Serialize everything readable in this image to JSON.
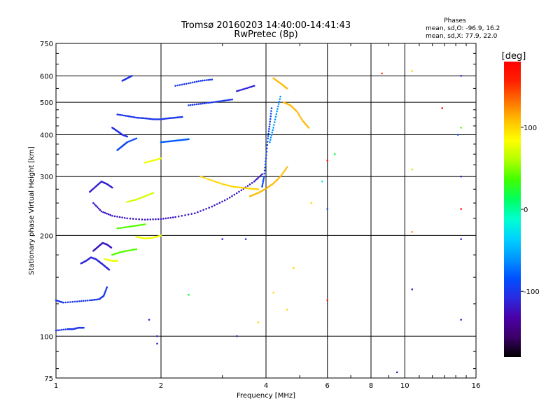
{
  "header": {
    "title_line1": "Tromsø 20160203 14:40:00-14:41:43",
    "title_line2": "RwPretec (8p)",
    "stats_title": "Phases",
    "stats_line_O": "mean, sd,O: -96.9, 16.2",
    "stats_line_X": "mean, sd,X:  77.9, 22.0"
  },
  "colorbar": {
    "unit_label": "[deg]",
    "ticks": [
      {
        "value": 100,
        "label": "100"
      },
      {
        "value": 0,
        "label": "0"
      },
      {
        "value": -100,
        "label": "-100"
      }
    ],
    "range": [
      -180,
      180
    ],
    "palette": [
      "#000000",
      "#3b0066",
      "#4a00a8",
      "#2a2ae0",
      "#0050ff",
      "#0096ff",
      "#00d2ff",
      "#00ffd0",
      "#00ff60",
      "#40ff00",
      "#b0ff00",
      "#ffff00",
      "#ffc000",
      "#ff7000",
      "#ff2000",
      "#ff0000"
    ]
  },
  "chart_data": {
    "type": "scatter",
    "title": "Tromsø 20160203 14:40:00-14:41:43",
    "subtitle": "RwPretec (8p)",
    "xlabel": "Frequency [MHz]",
    "ylabel": "Stationary phase Virtual Height [km]",
    "xscale": "log",
    "yscale": "log",
    "xlim": [
      1,
      16
    ],
    "ylim": [
      75,
      750
    ],
    "xticks": [
      1,
      2,
      4,
      6,
      8,
      10,
      16
    ],
    "xtick_labels": [
      "1",
      "2",
      "4",
      "6",
      "8",
      "10",
      "16"
    ],
    "yticks": [
      75,
      100,
      200,
      300,
      400,
      500,
      600,
      750
    ],
    "ytick_labels": [
      "75",
      "100",
      "200",
      "300",
      "400",
      "500",
      "600",
      "750"
    ],
    "grid": true,
    "color_encoding": "phase [deg]",
    "traces": [
      {
        "freq": [
          1.0,
          1.08,
          1.12,
          1.16,
          1.2
        ],
        "height": [
          104,
          105,
          105,
          106,
          106
        ],
        "phase": -100
      },
      {
        "freq": [
          1.0,
          1.05,
          1.15,
          1.25,
          1.33,
          1.37,
          1.4
        ],
        "height": [
          128,
          126,
          127,
          128,
          129,
          132,
          140
        ],
        "phase": -100
      },
      {
        "freq": [
          1.18,
          1.22,
          1.26,
          1.3,
          1.34,
          1.38,
          1.42
        ],
        "height": [
          165,
          168,
          172,
          170,
          166,
          162,
          158
        ],
        "phase": -110
      },
      {
        "freq": [
          1.28,
          1.32,
          1.36,
          1.4,
          1.44
        ],
        "height": [
          180,
          185,
          190,
          188,
          184
        ],
        "phase": -120
      },
      {
        "freq": [
          1.45,
          1.52,
          1.6,
          1.7
        ],
        "height": [
          175,
          178,
          180,
          182
        ],
        "phase": 40
      },
      {
        "freq": [
          1.38,
          1.45,
          1.5
        ],
        "height": [
          170,
          168,
          168
        ],
        "phase": 80
      },
      {
        "freq": [
          1.28,
          1.35,
          1.45,
          1.6,
          1.8,
          2.0,
          2.2,
          2.5,
          2.8,
          3.1,
          3.4,
          3.7,
          3.9
        ],
        "height": [
          250,
          236,
          229,
          225,
          223,
          224,
          227,
          233,
          244,
          257,
          273,
          290,
          305
        ],
        "phase": -120
      },
      {
        "freq": [
          1.25,
          1.3,
          1.35,
          1.4,
          1.45
        ],
        "height": [
          270,
          280,
          290,
          285,
          278
        ],
        "phase": -115
      },
      {
        "freq": [
          1.5,
          1.6,
          1.7,
          1.8
        ],
        "height": [
          210,
          212,
          214,
          216
        ],
        "phase": 40
      },
      {
        "freq": [
          1.7,
          1.8,
          1.9,
          2.0
        ],
        "height": [
          198,
          196,
          197,
          200
        ],
        "phase": 80
      },
      {
        "freq": [
          1.6,
          1.7,
          1.8,
          1.9
        ],
        "height": [
          252,
          256,
          262,
          268
        ],
        "phase": 70
      },
      {
        "freq": [
          2.6,
          2.8,
          3.0,
          3.2,
          3.4,
          3.6,
          3.8
        ],
        "height": [
          300,
          292,
          285,
          280,
          278,
          276,
          275
        ],
        "phase": 100
      },
      {
        "freq": [
          3.6,
          3.8,
          4.0,
          4.2,
          4.4,
          4.6
        ],
        "height": [
          262,
          268,
          276,
          286,
          300,
          320
        ],
        "phase": 110
      },
      {
        "freq": [
          3.9,
          3.95,
          4.0,
          4.05,
          4.1,
          4.15
        ],
        "height": [
          280,
          300,
          340,
          390,
          430,
          480
        ],
        "phase": -90
      },
      {
        "freq": [
          4.1,
          4.2,
          4.3,
          4.4
        ],
        "height": [
          380,
          420,
          470,
          520
        ],
        "phase": -60
      },
      {
        "freq": [
          4.5,
          4.7,
          4.9,
          5.1,
          5.3
        ],
        "height": [
          500,
          490,
          470,
          440,
          420
        ],
        "phase": 110
      },
      {
        "freq": [
          4.2,
          4.4,
          4.6
        ],
        "height": [
          590,
          570,
          550
        ],
        "phase": 110
      },
      {
        "freq": [
          1.5,
          1.6,
          1.7,
          1.8,
          1.9,
          2.0,
          2.1,
          2.2,
          2.3
        ],
        "height": [
          460,
          455,
          450,
          448,
          445,
          445,
          448,
          450,
          452
        ],
        "phase": -100
      },
      {
        "freq": [
          2.4,
          2.6,
          2.8,
          3.0,
          3.2
        ],
        "height": [
          490,
          495,
          500,
          505,
          510
        ],
        "phase": -100
      },
      {
        "freq": [
          3.3,
          3.5,
          3.7
        ],
        "height": [
          540,
          550,
          560
        ],
        "phase": -110
      },
      {
        "freq": [
          2.2,
          2.4,
          2.6,
          2.8
        ],
        "height": [
          560,
          570,
          580,
          585
        ],
        "phase": -100
      },
      {
        "freq": [
          1.5,
          1.55,
          1.6,
          1.7
        ],
        "height": [
          360,
          370,
          380,
          390
        ],
        "phase": -90
      },
      {
        "freq": [
          2.0,
          2.1,
          2.2,
          2.3,
          2.4
        ],
        "height": [
          380,
          382,
          384,
          386,
          388
        ],
        "phase": -80
      },
      {
        "freq": [
          1.55,
          1.6,
          1.65
        ],
        "height": [
          580,
          590,
          600
        ],
        "phase": -100
      },
      {
        "freq": [
          1.45,
          1.5,
          1.55,
          1.6
        ],
        "height": [
          420,
          410,
          400,
          395
        ],
        "phase": -105
      },
      {
        "freq": [
          1.8,
          1.9,
          2.0
        ],
        "height": [
          330,
          335,
          340
        ],
        "phase": 80
      }
    ],
    "points": [
      {
        "freq": 8.6,
        "height": 610,
        "phase": 150
      },
      {
        "freq": 10.5,
        "height": 620,
        "phase": 100
      },
      {
        "freq": 12.8,
        "height": 480,
        "phase": 170
      },
      {
        "freq": 14.5,
        "height": 420,
        "phase": 40
      },
      {
        "freq": 14.5,
        "height": 600,
        "phase": -120
      },
      {
        "freq": 14.2,
        "height": 400,
        "phase": -90
      },
      {
        "freq": 6.3,
        "height": 350,
        "phase": 20
      },
      {
        "freq": 6.0,
        "height": 335,
        "phase": 170
      },
      {
        "freq": 5.8,
        "height": 290,
        "phase": -20
      },
      {
        "freq": 10.5,
        "height": 315,
        "phase": 60
      },
      {
        "freq": 14.5,
        "height": 300,
        "phase": -110
      },
      {
        "freq": 14.5,
        "height": 240,
        "phase": 170
      },
      {
        "freq": 10.5,
        "height": 205,
        "phase": 120
      },
      {
        "freq": 14.5,
        "height": 195,
        "phase": -110
      },
      {
        "freq": 10.5,
        "height": 138,
        "phase": -120
      },
      {
        "freq": 14.5,
        "height": 112,
        "phase": -110
      },
      {
        "freq": 9.5,
        "height": 78,
        "phase": -130
      },
      {
        "freq": 6.0,
        "height": 128,
        "phase": 170
      },
      {
        "freq": 6.0,
        "height": 240,
        "phase": -100
      },
      {
        "freq": 2.4,
        "height": 133,
        "phase": 20
      },
      {
        "freq": 1.85,
        "height": 112,
        "phase": -110
      },
      {
        "freq": 1.95,
        "height": 100,
        "phase": -120
      },
      {
        "freq": 1.95,
        "height": 95,
        "phase": -130
      },
      {
        "freq": 3.3,
        "height": 100,
        "phase": -120
      },
      {
        "freq": 3.8,
        "height": 110,
        "phase": 100
      },
      {
        "freq": 3.0,
        "height": 195,
        "phase": -110
      },
      {
        "freq": 3.5,
        "height": 195,
        "phase": -100
      },
      {
        "freq": 4.2,
        "height": 135,
        "phase": 100
      },
      {
        "freq": 4.6,
        "height": 120,
        "phase": 100
      },
      {
        "freq": 4.8,
        "height": 160,
        "phase": 100
      },
      {
        "freq": 5.4,
        "height": 250,
        "phase": 100
      }
    ]
  }
}
